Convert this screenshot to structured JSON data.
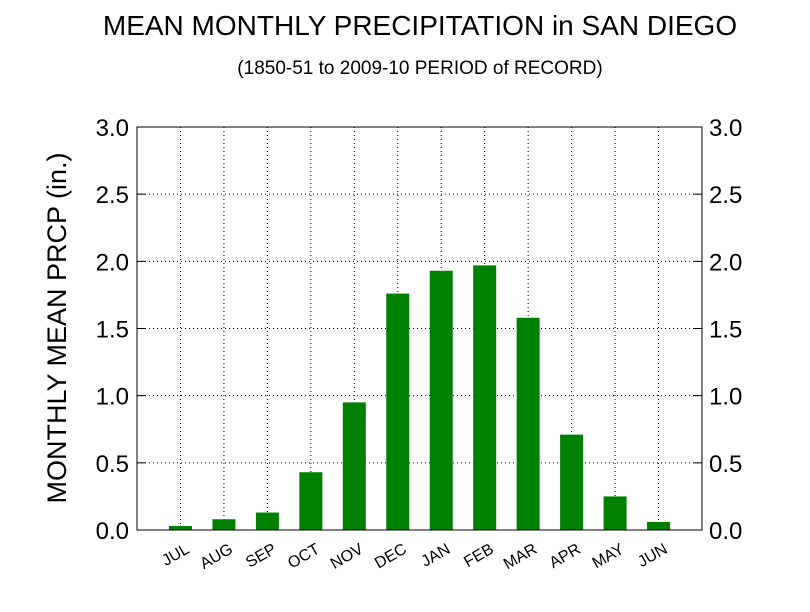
{
  "chart_data": {
    "type": "bar",
    "title": "MEAN MONTHLY PRECIPITATION in SAN DIEGO",
    "subtitle": "(1850-51 to 2009-10 PERIOD of RECORD)",
    "xlabel": "",
    "ylabel": "MONTHLY MEAN PRCP (in.)",
    "categories": [
      "JUL",
      "AUG",
      "SEP",
      "OCT",
      "NOV",
      "DEC",
      "JAN",
      "FEB",
      "MAR",
      "APR",
      "MAY",
      "JUN"
    ],
    "values": [
      0.03,
      0.08,
      0.13,
      0.43,
      0.95,
      1.76,
      1.93,
      1.97,
      1.58,
      0.71,
      0.25,
      0.06
    ],
    "ylim": [
      0,
      3.0
    ],
    "yticks": [
      "0.0",
      "0.5",
      "1.0",
      "1.5",
      "2.0",
      "2.5",
      "3.0"
    ],
    "y_axes": "left-and-right",
    "grid": "dotted",
    "bar_color": "#008000",
    "legend": "none"
  }
}
